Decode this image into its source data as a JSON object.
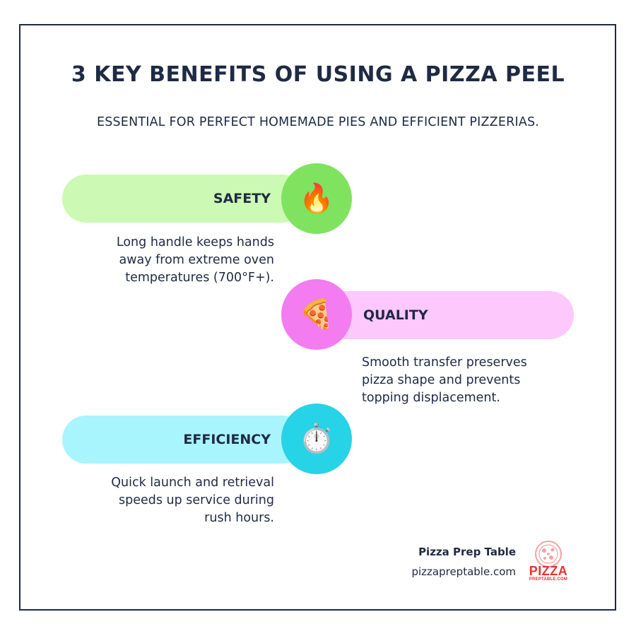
{
  "header": {
    "title": "3 KEY BENEFITS OF USING A PIZZA PEEL",
    "subtitle": "ESSENTIAL FOR PERFECT HOMEMADE PIES AND EFFICIENT PIZZERIAS."
  },
  "benefits": [
    {
      "label": "SAFETY",
      "icon": "🔥",
      "icon_name": "fire-icon",
      "description_lines": [
        "Long handle keeps hands",
        "away from extreme oven",
        "temperatures (700°F+)."
      ],
      "pill_color": "#ccf9b3",
      "circle_color": "#7fe35f"
    },
    {
      "label": "QUALITY",
      "icon": "🍕",
      "icon_name": "pizza-slice-icon",
      "description_lines": [
        "Smooth transfer preserves",
        "pizza shape and prevents",
        "topping displacement."
      ],
      "pill_color": "#fdc8fb",
      "circle_color": "#f27cf0"
    },
    {
      "label": "EFFICIENCY",
      "icon": "⏱️",
      "icon_name": "stopwatch-icon",
      "description_lines": [
        "Quick launch and retrieval",
        "speeds up service during",
        "rush hours."
      ],
      "pill_color": "#a8f5fd",
      "circle_color": "#27d3e6"
    }
  ],
  "footer": {
    "brand_name": "Pizza Prep Table",
    "url": "pizzapreptable.com",
    "logo_word": "PIZZA",
    "logo_sub": "PREPTABLE.COM"
  }
}
